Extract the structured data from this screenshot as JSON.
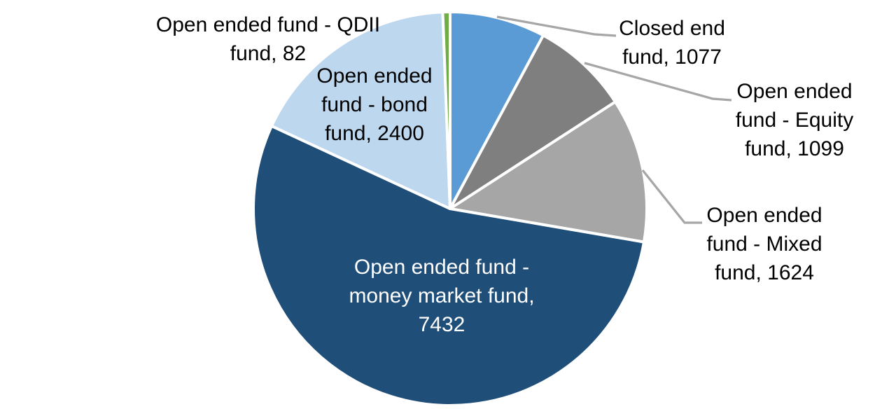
{
  "chart_data": {
    "type": "pie",
    "title": "",
    "legend": "none",
    "background_color": "#FFFFFF",
    "start_angle_deg": 0,
    "direction": "clockwise",
    "total": 13714,
    "slice_border_color": "#FFFFFF",
    "leader_line_color": "#A6A6A6",
    "label_text_color": "#000000",
    "slices": [
      {
        "label": "Closed end fund",
        "value": 1077,
        "color": "#5B9BD5",
        "data_label": "Closed end\nfund, 1077",
        "label_placement": "outside",
        "leader_line": true
      },
      {
        "label": "Open ended fund - Equity fund",
        "value": 1099,
        "color": "#7F7F7F",
        "data_label": "Open ended\nfund - Equity\nfund, 1099",
        "label_placement": "outside",
        "leader_line": true
      },
      {
        "label": "Open ended fund - Mixed fund",
        "value": 1624,
        "color": "#A6A6A6",
        "data_label": "Open ended\nfund - Mixed\nfund, 1624",
        "label_placement": "outside",
        "leader_line": true
      },
      {
        "label": "Open ended fund - money market fund",
        "value": 7432,
        "color": "#1F4E79",
        "data_label": "Open ended fund -\nmoney market fund,\n7432",
        "label_placement": "inside",
        "label_color": "#FFFFFF",
        "leader_line": false
      },
      {
        "label": "Open ended fund - bond fund",
        "value": 2400,
        "color": "#BDD7EE",
        "data_label": "Open ended\nfund - bond\nfund, 2400",
        "label_placement": "on-slice",
        "leader_line": false
      },
      {
        "label": "Open ended fund - QDII fund",
        "value": 82,
        "color": "#70AD47",
        "data_label": "Open ended fund - QDII\nfund, 82",
        "label_placement": "outside",
        "leader_line": false
      }
    ]
  }
}
